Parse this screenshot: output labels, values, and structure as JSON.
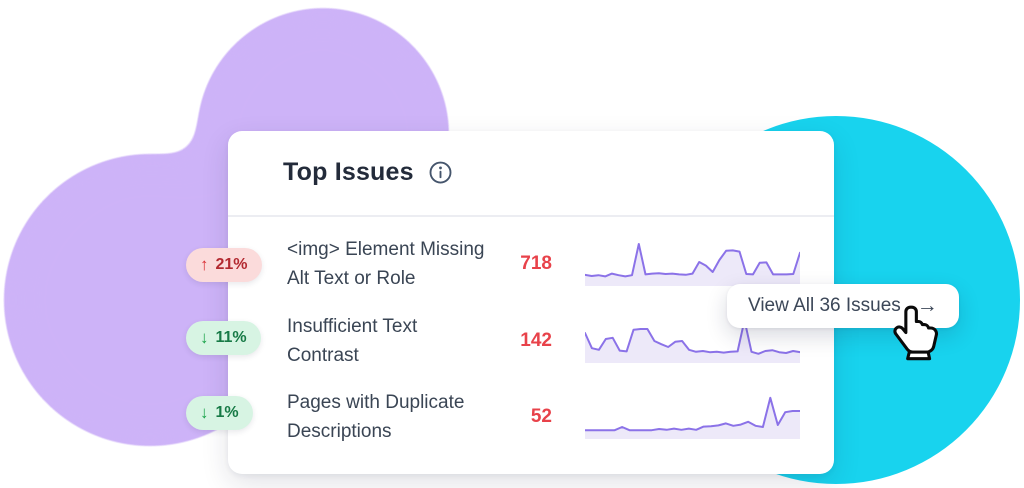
{
  "background": {
    "purple_blob_color": "#CDB3F8",
    "cyan_blob_color": "#18D3EE"
  },
  "card": {
    "title": "Top Issues",
    "rows": [
      {
        "badge": {
          "arrow": "↑",
          "value": "21%",
          "trend": "up"
        },
        "label_line1": "<img> Element Missing",
        "label_line2": "Alt Text or Role",
        "count": "718"
      },
      {
        "badge": {
          "arrow": "↓",
          "value": "11%",
          "trend": "down"
        },
        "label_line1": "Insufficient Text",
        "label_line2": "Contrast",
        "count": "142"
      },
      {
        "badge": {
          "arrow": "↓",
          "value": "1%",
          "trend": "down"
        },
        "label_line1": "Pages with Duplicate",
        "label_line2": "Descriptions",
        "count": "52"
      }
    ],
    "view_all_button": {
      "label": "View All 36 Issues",
      "arrow": "→"
    }
  },
  "colors": {
    "title_text": "#232B3A",
    "row_text": "#3A4554",
    "count_text": "#E8424A",
    "divider": "#ECEDF2",
    "badge_red_bg": "#FBDBDB",
    "badge_red_text": "#B32A31",
    "badge_red_arrow": "#D92D33",
    "badge_green_bg": "#D7F4E3",
    "badge_green_text": "#177A46",
    "badge_green_arrow": "#1AA34A",
    "sparkline_line": "#8B72E8",
    "sparkline_fill": "#EDE9F9"
  },
  "chart_data": [
    {
      "type": "area",
      "name": "sparkline-img-element-missing-alt",
      "title": "<img> Element Missing Alt Text or Role trend",
      "ylim": [
        0,
        100
      ],
      "values": [
        13,
        10,
        12,
        9,
        16,
        12,
        9,
        12,
        90,
        14,
        16,
        17,
        15,
        16,
        14,
        13,
        16,
        45,
        36,
        20,
        50,
        73,
        74,
        71,
        15,
        14,
        43,
        44,
        14,
        14,
        14,
        15,
        68
      ]
    },
    {
      "type": "area",
      "name": "sparkline-insufficient-text-contrast",
      "title": "Insufficient Text Contrast trend",
      "ylim": [
        0,
        100
      ],
      "values": [
        60,
        22,
        18,
        45,
        48,
        16,
        14,
        68,
        70,
        70,
        40,
        32,
        25,
        38,
        40,
        18,
        13,
        15,
        12,
        13,
        11,
        13,
        14,
        92,
        13,
        8,
        15,
        17,
        12,
        10,
        15,
        12
      ]
    },
    {
      "type": "area",
      "name": "sparkline-pages-duplicate-descriptions",
      "title": "Pages with Duplicate Descriptions trend",
      "ylim": [
        0,
        100
      ],
      "values": [
        7,
        7,
        7,
        7,
        7,
        15,
        7,
        7,
        7,
        7,
        10,
        8,
        11,
        8,
        11,
        8,
        16,
        17,
        19,
        24,
        18,
        21,
        28,
        18,
        15,
        88,
        20,
        52,
        55,
        55
      ]
    }
  ]
}
